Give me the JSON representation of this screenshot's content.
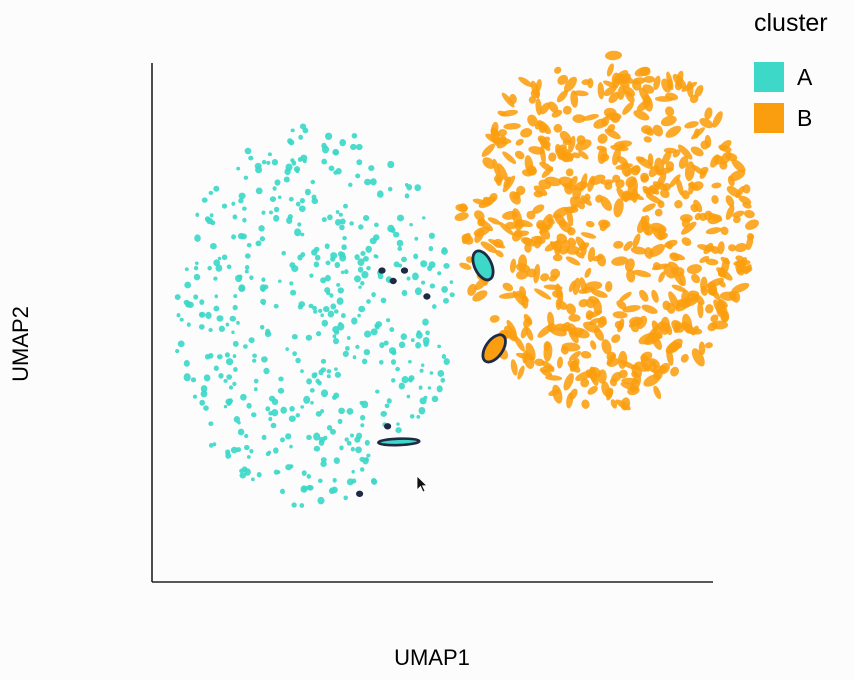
{
  "chart_data": {
    "type": "scatter",
    "title": "",
    "xlabel": "UMAP1",
    "ylabel": "UMAP2",
    "xlim": [
      0,
      10
    ],
    "ylim": [
      0,
      10
    ],
    "grid": false,
    "axis_ticks_shown": false,
    "legend": {
      "title": "cluster",
      "position": "top-right",
      "entries": [
        "A",
        "B"
      ]
    },
    "series": [
      {
        "name": "A",
        "color": "#3dd8c8",
        "point_shape": "small-dot",
        "region_center": [
          2.9,
          5.1
        ],
        "region_radius": [
          2.5,
          7.4
        ],
        "point_count": 500
      },
      {
        "name": "B",
        "color": "#fa9e0f",
        "point_shape": "elongated-ellipse",
        "region_center": [
          8.1,
          6.8
        ],
        "region_radius": [
          2.6,
          6.9
        ],
        "point_count": 600
      }
    ],
    "highlighted_points": [
      {
        "x": 4.1,
        "y": 6.0,
        "shape": "dot",
        "fill": "#1f2a44"
      },
      {
        "x": 4.5,
        "y": 6.0,
        "shape": "dot",
        "fill": "#1f2a44"
      },
      {
        "x": 4.3,
        "y": 5.8,
        "shape": "dot",
        "fill": "#1f2a44"
      },
      {
        "x": 4.9,
        "y": 5.5,
        "shape": "dot",
        "fill": "#1f2a44"
      },
      {
        "x": 4.2,
        "y": 3.0,
        "shape": "dot",
        "fill": "#1f2a44"
      },
      {
        "x": 3.7,
        "y": 1.7,
        "shape": "dot",
        "fill": "#1f2a44"
      },
      {
        "x": 5.9,
        "y": 6.1,
        "shape": "ellipse",
        "fill": "#3dd8c8"
      },
      {
        "x": 6.1,
        "y": 4.5,
        "shape": "ellipse",
        "fill": "#fa9e0f"
      },
      {
        "x": 4.4,
        "y": 2.7,
        "shape": "flat-ellipse",
        "fill": "#3dd8c8"
      }
    ],
    "outline_color": "#1f2a44"
  }
}
